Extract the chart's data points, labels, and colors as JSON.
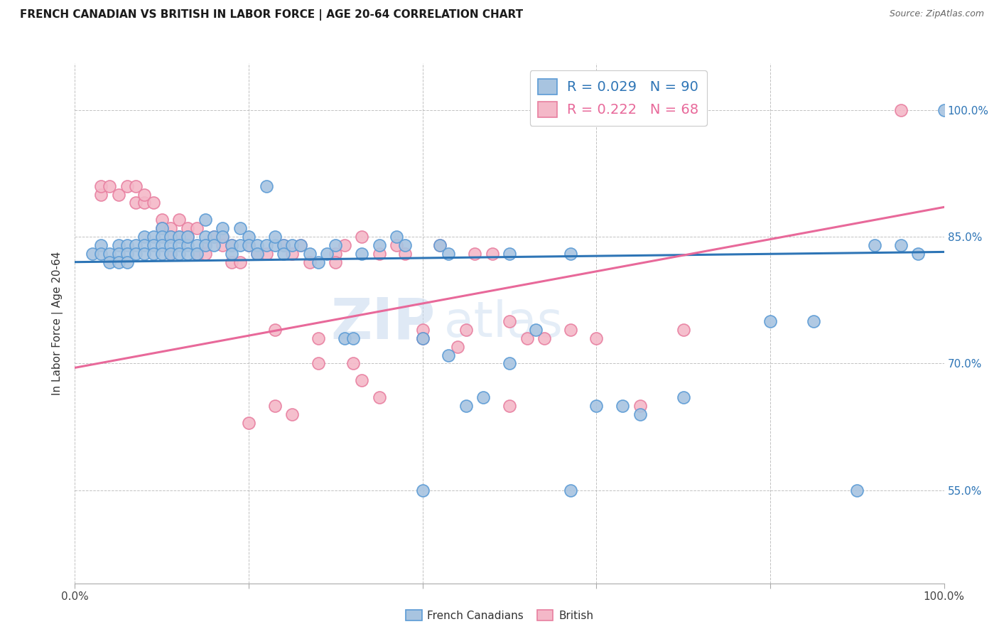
{
  "title": "FRENCH CANADIAN VS BRITISH IN LABOR FORCE | AGE 20-64 CORRELATION CHART",
  "source": "Source: ZipAtlas.com",
  "ylabel": "In Labor Force | Age 20-64",
  "y_tick_labels": [
    "55.0%",
    "70.0%",
    "85.0%",
    "100.0%"
  ],
  "y_tick_values": [
    0.55,
    0.7,
    0.85,
    1.0
  ],
  "x_range": [
    0.0,
    1.0
  ],
  "y_range": [
    0.44,
    1.055
  ],
  "blue_R": 0.029,
  "blue_N": 90,
  "pink_R": 0.222,
  "pink_N": 68,
  "blue_color": "#a8c4e0",
  "blue_edge_color": "#5b9bd5",
  "pink_color": "#f4b8c8",
  "pink_edge_color": "#e87fa0",
  "blue_line_color": "#2e75b6",
  "pink_line_color": "#e8699a",
  "legend_blue_label": "French Canadians",
  "legend_pink_label": "British",
  "watermark_zip": "ZIP",
  "watermark_atlas": "atlas",
  "blue_line_x0": 0.0,
  "blue_line_y0": 0.82,
  "blue_line_x1": 1.0,
  "blue_line_y1": 0.832,
  "pink_line_x0": 0.0,
  "pink_line_y0": 0.695,
  "pink_line_x1": 1.0,
  "pink_line_y1": 0.885,
  "blue_scatter_x": [
    0.02,
    0.03,
    0.03,
    0.04,
    0.04,
    0.05,
    0.05,
    0.05,
    0.06,
    0.06,
    0.06,
    0.07,
    0.07,
    0.08,
    0.08,
    0.08,
    0.09,
    0.09,
    0.09,
    0.1,
    0.1,
    0.1,
    0.1,
    0.11,
    0.11,
    0.11,
    0.12,
    0.12,
    0.12,
    0.13,
    0.13,
    0.13,
    0.14,
    0.14,
    0.15,
    0.15,
    0.15,
    0.16,
    0.16,
    0.17,
    0.17,
    0.18,
    0.18,
    0.19,
    0.19,
    0.2,
    0.2,
    0.21,
    0.21,
    0.22,
    0.22,
    0.23,
    0.23,
    0.24,
    0.24,
    0.25,
    0.26,
    0.27,
    0.28,
    0.29,
    0.3,
    0.31,
    0.32,
    0.33,
    0.35,
    0.37,
    0.38,
    0.4,
    0.42,
    0.43,
    0.45,
    0.47,
    0.5,
    0.53,
    0.57,
    0.6,
    0.65,
    0.7,
    0.8,
    0.85,
    0.9,
    0.92,
    0.95,
    0.97,
    0.4,
    0.43,
    0.5,
    0.57,
    0.63,
    1.0
  ],
  "blue_scatter_y": [
    0.83,
    0.84,
    0.83,
    0.83,
    0.82,
    0.84,
    0.83,
    0.82,
    0.84,
    0.83,
    0.82,
    0.84,
    0.83,
    0.85,
    0.84,
    0.83,
    0.85,
    0.84,
    0.83,
    0.86,
    0.85,
    0.84,
    0.83,
    0.85,
    0.84,
    0.83,
    0.85,
    0.84,
    0.83,
    0.84,
    0.85,
    0.83,
    0.84,
    0.83,
    0.87,
    0.85,
    0.84,
    0.85,
    0.84,
    0.86,
    0.85,
    0.84,
    0.83,
    0.86,
    0.84,
    0.85,
    0.84,
    0.84,
    0.83,
    0.91,
    0.84,
    0.84,
    0.85,
    0.84,
    0.83,
    0.84,
    0.84,
    0.83,
    0.82,
    0.83,
    0.84,
    0.73,
    0.73,
    0.83,
    0.84,
    0.85,
    0.84,
    0.73,
    0.84,
    0.83,
    0.65,
    0.66,
    0.83,
    0.74,
    0.83,
    0.65,
    0.64,
    0.66,
    0.75,
    0.75,
    0.55,
    0.84,
    0.84,
    0.83,
    0.55,
    0.71,
    0.7,
    0.55,
    0.65,
    1.0
  ],
  "pink_scatter_x": [
    0.03,
    0.03,
    0.04,
    0.05,
    0.06,
    0.07,
    0.07,
    0.08,
    0.08,
    0.09,
    0.1,
    0.1,
    0.11,
    0.11,
    0.11,
    0.12,
    0.12,
    0.13,
    0.13,
    0.14,
    0.14,
    0.15,
    0.15,
    0.16,
    0.17,
    0.17,
    0.18,
    0.18,
    0.19,
    0.2,
    0.21,
    0.22,
    0.23,
    0.24,
    0.25,
    0.26,
    0.27,
    0.28,
    0.3,
    0.3,
    0.31,
    0.32,
    0.33,
    0.35,
    0.37,
    0.38,
    0.4,
    0.42,
    0.44,
    0.46,
    0.48,
    0.5,
    0.52,
    0.2,
    0.23,
    0.25,
    0.28,
    0.33,
    0.35,
    0.4,
    0.45,
    0.5,
    0.54,
    0.57,
    0.6,
    0.65,
    0.7,
    0.95
  ],
  "pink_scatter_y": [
    0.9,
    0.91,
    0.91,
    0.9,
    0.91,
    0.89,
    0.91,
    0.89,
    0.9,
    0.89,
    0.87,
    0.86,
    0.86,
    0.85,
    0.83,
    0.87,
    0.85,
    0.86,
    0.85,
    0.86,
    0.83,
    0.84,
    0.83,
    0.85,
    0.85,
    0.84,
    0.84,
    0.82,
    0.82,
    0.84,
    0.83,
    0.83,
    0.74,
    0.84,
    0.83,
    0.84,
    0.82,
    0.73,
    0.83,
    0.82,
    0.84,
    0.7,
    0.85,
    0.83,
    0.84,
    0.83,
    0.74,
    0.84,
    0.72,
    0.83,
    0.83,
    0.75,
    0.73,
    0.63,
    0.65,
    0.64,
    0.7,
    0.68,
    0.66,
    0.73,
    0.74,
    0.65,
    0.73,
    0.74,
    0.73,
    0.65,
    0.74,
    1.0
  ]
}
